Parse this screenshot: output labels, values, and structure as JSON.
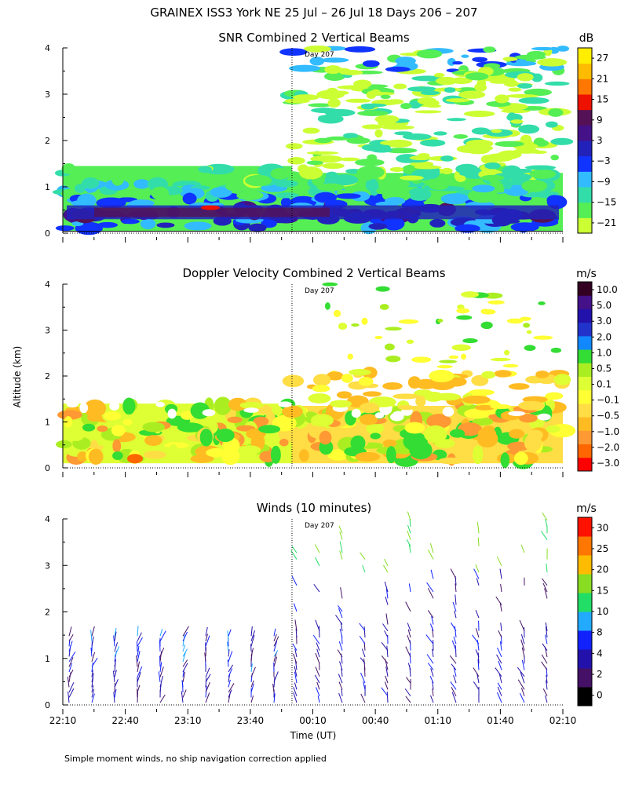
{
  "header": {
    "title": "GRAINEX ISS3 York NE  25 Jul – 26 Jul 18 Days 206 – 207"
  },
  "footer": {
    "note": "Simple moment winds, no ship navigation correction applied"
  },
  "common": {
    "ylabel": "Altitude (km)",
    "xlabel": "Time (UT)",
    "x_ticks": [
      "22:10",
      "22:40",
      "23:10",
      "23:40",
      "00:10",
      "00:40",
      "01:10",
      "01:40",
      "02:10"
    ],
    "y_ticks": [
      "0",
      "1",
      "2",
      "3",
      "4"
    ],
    "day_marker": "Day 207"
  },
  "chart_data": [
    {
      "type": "heatmap",
      "title": "SNR Combined 2 Vertical Beams",
      "unit": "dB",
      "xlabel": "Time (UT)",
      "ylabel": "Altitude (km)",
      "x_range": [
        "22:10",
        "02:10"
      ],
      "ylim": [
        0,
        4
      ],
      "day_boundary_time": "00:00",
      "colorbar": {
        "tick_labels": [
          "27",
          "21",
          "15",
          "9",
          "3",
          "−3",
          "−9",
          "−15",
          "−21"
        ],
        "colors": [
          "#ccff33",
          "#55ee55",
          "#33ddaa",
          "#33bbff",
          "#1133ff",
          "#2222bb",
          "#441188",
          "#551155",
          "#ee1100",
          "#ff7700",
          "#ffbb00",
          "#ffee00"
        ]
      },
      "layers": [
        {
          "label": "low-level max (−3 to 9 dB)",
          "alt_km": [
            0.1,
            0.8
          ]
        },
        {
          "label": "boundary layer top before 00:00",
          "alt_km": [
            1.3,
            1.45
          ]
        },
        {
          "label": "returns after 00:00",
          "alt_km": [
            0.1,
            4.0
          ]
        }
      ]
    },
    {
      "type": "heatmap",
      "title": "Doppler Velocity Combined 2 Vertical Beams",
      "unit": "m/s",
      "xlabel": "Time (UT)",
      "ylabel": "Altitude (km)",
      "x_range": [
        "22:10",
        "02:10"
      ],
      "ylim": [
        0,
        4
      ],
      "colorbar": {
        "tick_labels": [
          "10.0",
          "5.0",
          "3.0",
          "2.0",
          "1.0",
          "0.5",
          "0.1",
          "−0.1",
          "−0.5",
          "−1.0",
          "−2.0",
          "−3.0"
        ],
        "colors": [
          "#ff0000",
          "#ff6600",
          "#ff9933",
          "#ffbb22",
          "#ffdd44",
          "#ffff33",
          "#ddff33",
          "#aaee22",
          "#33dd33",
          "#1188ff",
          "#2233cc",
          "#2211aa",
          "#441188",
          "#330022"
        ]
      }
    },
    {
      "type": "scatter",
      "title": "Winds (10 minutes)",
      "unit": "m/s",
      "xlabel": "Time (UT)",
      "ylabel": "Altitude (km)",
      "x_range": [
        "22:10",
        "02:10"
      ],
      "ylim": [
        0,
        4
      ],
      "colorbar": {
        "tick_labels": [
          "30",
          "25",
          "20",
          "15",
          "10",
          "8",
          "4",
          "2",
          "0"
        ],
        "colors": [
          "#000000",
          "#441166",
          "#2211aa",
          "#1122ff",
          "#22aaff",
          "#22dd66",
          "#88dd22",
          "#ffbb00",
          "#ff7700",
          "#ff1100"
        ]
      }
    }
  ]
}
